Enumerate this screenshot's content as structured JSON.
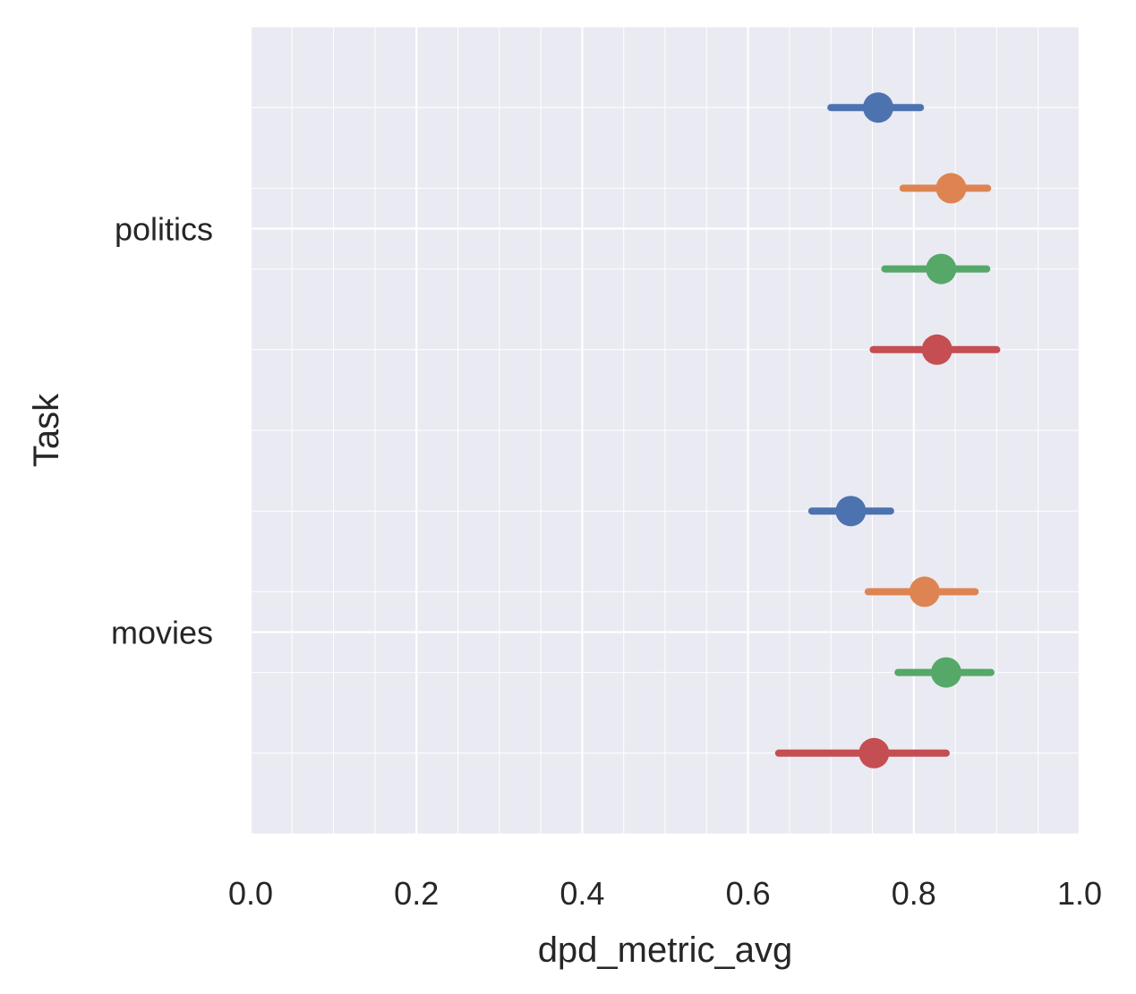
{
  "chart_data": {
    "type": "scatter",
    "title": "",
    "xlabel": "dpd_metric_avg",
    "ylabel": "Task",
    "xlim": [
      0.0,
      1.0
    ],
    "xticks": [
      "0.0",
      "0.2",
      "0.4",
      "0.6",
      "0.8",
      "1.0"
    ],
    "categories": [
      "politics",
      "movies"
    ],
    "grid": true,
    "legend": "none",
    "series": [
      {
        "color": "#4c72b0",
        "values": [
          0.757,
          0.724
        ],
        "ci_low": [
          0.7,
          0.677
        ],
        "ci_high": [
          0.808,
          0.772
        ]
      },
      {
        "color": "#dd8452",
        "values": [
          0.845,
          0.813
        ],
        "ci_low": [
          0.787,
          0.745
        ],
        "ci_high": [
          0.889,
          0.874
        ]
      },
      {
        "color": "#55a868",
        "values": [
          0.833,
          0.839
        ],
        "ci_low": [
          0.765,
          0.781
        ],
        "ci_high": [
          0.888,
          0.893
        ]
      },
      {
        "color": "#c44e52",
        "values": [
          0.828,
          0.752
        ],
        "ci_low": [
          0.751,
          0.637
        ],
        "ci_high": [
          0.9,
          0.839
        ]
      }
    ]
  }
}
